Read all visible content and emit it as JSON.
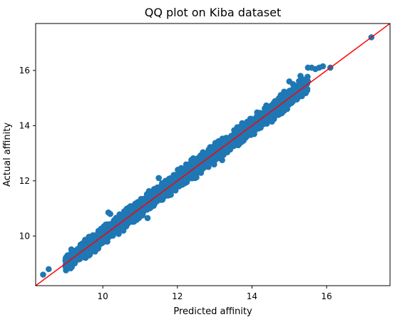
{
  "colors": {
    "points": "#1f77b4",
    "reference_line": "#ff0000",
    "axes": "#000000",
    "background": "#ffffff"
  },
  "chart_data": {
    "type": "scatter",
    "title": "QQ plot on Kiba dataset",
    "xlabel": "Predicted affinity",
    "ylabel": "Actual affinity",
    "xlim": [
      8.2,
      17.7
    ],
    "ylim": [
      8.2,
      17.7
    ],
    "xticks": [
      10,
      12,
      14,
      16
    ],
    "yticks": [
      10,
      12,
      14,
      16
    ],
    "grid": false,
    "legend": "none",
    "reference_line": {
      "type": "y=x",
      "color": "#ff0000"
    },
    "series": [
      {
        "band": {
          "x_range": [
            9.0,
            15.5
          ],
          "slope": 1.0,
          "intercept": 0.0,
          "half_width": 0.28,
          "density": 2200
        },
        "points": [
          [
            8.4,
            8.6
          ],
          [
            8.55,
            8.8
          ],
          [
            9.0,
            9.1
          ],
          [
            9.15,
            9.1
          ],
          [
            9.25,
            9.4
          ],
          [
            9.35,
            9.5
          ],
          [
            9.5,
            9.6
          ],
          [
            9.6,
            9.55
          ],
          [
            10.15,
            10.85
          ],
          [
            10.2,
            10.8
          ],
          [
            10.55,
            10.3
          ],
          [
            11.2,
            10.65
          ],
          [
            11.25,
            11.0
          ],
          [
            11.5,
            12.1
          ],
          [
            11.95,
            11.65
          ],
          [
            12.25,
            11.95
          ],
          [
            12.6,
            12.3
          ],
          [
            13.2,
            12.75
          ],
          [
            13.65,
            13.35
          ],
          [
            14.0,
            13.9
          ],
          [
            14.3,
            14.05
          ],
          [
            14.8,
            14.45
          ],
          [
            15.0,
            15.6
          ],
          [
            15.1,
            15.5
          ],
          [
            15.2,
            14.95
          ],
          [
            15.3,
            15.8
          ],
          [
            15.4,
            15.5
          ],
          [
            15.5,
            16.1
          ],
          [
            15.6,
            16.1
          ],
          [
            15.7,
            16.05
          ],
          [
            15.8,
            16.1
          ],
          [
            15.9,
            16.15
          ],
          [
            16.1,
            16.1
          ],
          [
            17.2,
            17.2
          ]
        ]
      }
    ]
  }
}
